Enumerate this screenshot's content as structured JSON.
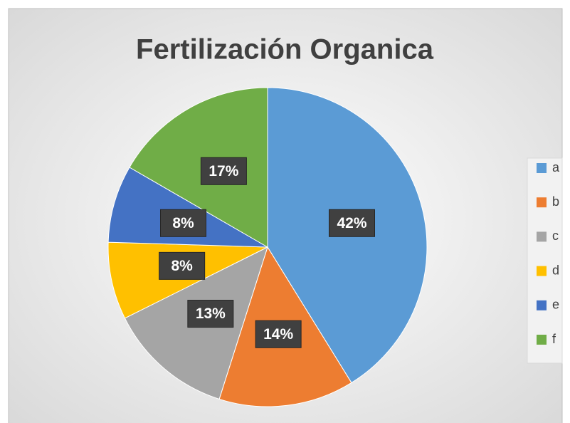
{
  "chart_data": {
    "type": "pie",
    "title": "Fertilización Organica",
    "categories": [
      "a",
      "b",
      "c",
      "d",
      "e",
      "f"
    ],
    "values": [
      42,
      14,
      13,
      8,
      8,
      17
    ],
    "value_labels": [
      "42%",
      "14%",
      "13%",
      "8%",
      "8%",
      "17%"
    ],
    "colors": [
      "#5b9bd5",
      "#ed7d31",
      "#a5a5a5",
      "#ffc000",
      "#4472c4",
      "#70ad47"
    ],
    "legend": "right"
  }
}
